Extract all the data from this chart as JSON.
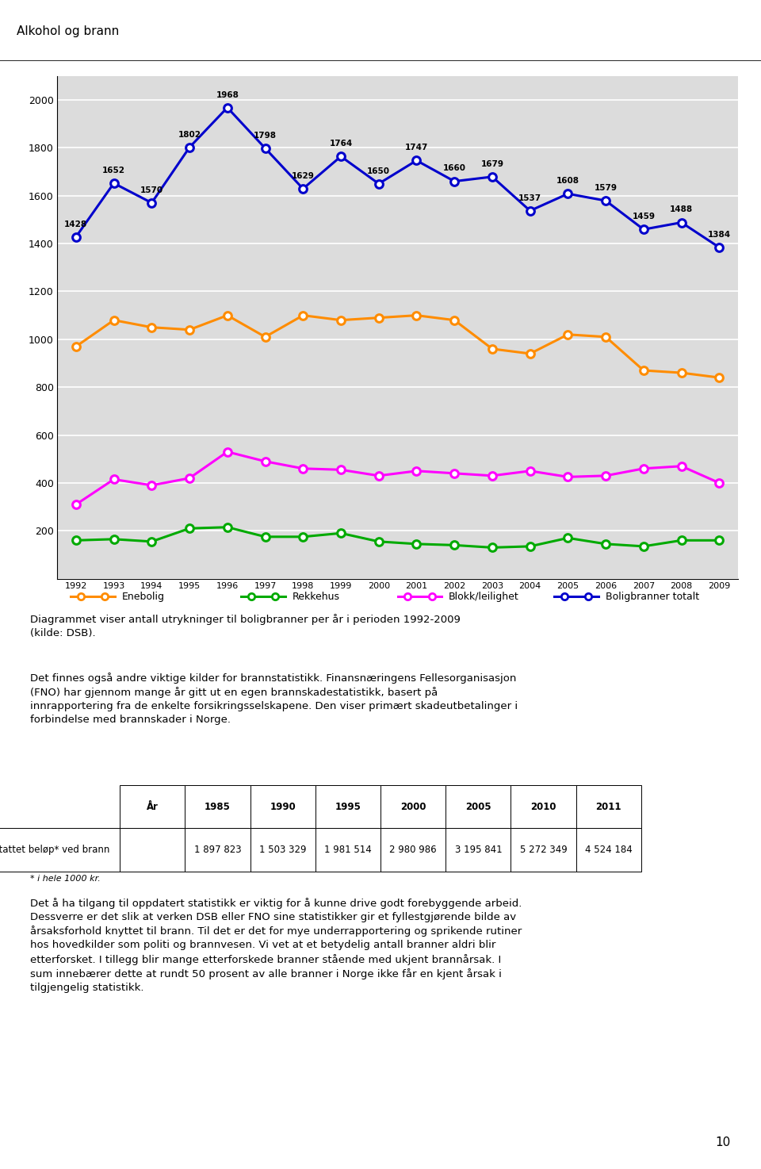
{
  "title": "Alkohol og brann",
  "years": [
    1992,
    1993,
    1994,
    1995,
    1996,
    1997,
    1998,
    1999,
    2000,
    2001,
    2002,
    2003,
    2004,
    2005,
    2006,
    2007,
    2008,
    2009
  ],
  "enebolig": [
    970,
    1080,
    1050,
    1040,
    1100,
    1010,
    1100,
    1080,
    1090,
    1100,
    1080,
    960,
    940,
    1020,
    1010,
    870,
    860,
    840
  ],
  "rekkehus": [
    160,
    165,
    155,
    210,
    215,
    175,
    175,
    190,
    155,
    145,
    140,
    130,
    135,
    170,
    145,
    135,
    160,
    160
  ],
  "blokk": [
    310,
    415,
    390,
    420,
    530,
    490,
    460,
    455,
    430,
    450,
    440,
    430,
    450,
    425,
    430,
    460,
    470,
    400
  ],
  "totalt": [
    1428,
    1652,
    1570,
    1802,
    1968,
    1798,
    1629,
    1764,
    1650,
    1747,
    1660,
    1679,
    1537,
    1608,
    1579,
    1459,
    1488,
    1384
  ],
  "enebolig_color": "#FF8C00",
  "rekkehus_color": "#00AA00",
  "blokk_color": "#FF00FF",
  "totalt_color": "#0000CC",
  "chart_bg": "#DCDCDC",
  "ylim": [
    0,
    2100
  ],
  "yticks": [
    0,
    200,
    400,
    600,
    800,
    1000,
    1200,
    1400,
    1600,
    1800,
    2000
  ],
  "legend_labels": [
    "Enebolig",
    "Rekkehus",
    "Blokk/leilighet",
    "Boligbranner totalt"
  ],
  "caption1": "Diagrammet viser antall utrykninger til boligbranner per år i perioden 1992-2009\n(kilde: DSB).",
  "caption2_part1": "Det finnes også andre viktige kilder for brannstatistikk. Finansnæringens Fellesorganisasjon\n(FNO) har gjennom mange år gitt ut en egen brannskadestatistikk, basert på\ninnrapportering fra de enkelte forsikringsselskapene. Den viser primært skadeutbetalinger i\nforbindelse med brannskader i Norge.",
  "table_headers": [
    "År",
    "1985",
    "1990",
    "1995",
    "2000",
    "2005",
    "2010",
    "2011"
  ],
  "table_row_label": "Erstattet beløp* ved brann",
  "table_values": [
    "1 897 823",
    "1 503 329",
    "1 981 514",
    "2 980 986",
    "3 195 841",
    "5 272 349",
    "4 524 184"
  ],
  "table_footnote": "* i hele 1000 kr.",
  "caption3": "Det å ha tilgang til oppdatert statistikk er viktig for å kunne drive godt forebyggende arbeid.\nDessverre er det slik at verken DSB eller FNO sine statistikker gir et fyllestgjørende bilde av\nårsaksforhold knyttet til brann. Til det er det for mye underrapportering og sprikende rutiner\nhos hovedkilder som politi og brannvesen. Vi vet at et betydelig antall branner aldri blir\netterforsket. I tillegg blir mange etterforskede branner stående med ukjent brannårsak. I\nsum innebærer dette at rundt 50 prosent av alle branner i Norge ikke får en kjent årsak i\ntilgjengelig statistikk.",
  "page_number": "10"
}
